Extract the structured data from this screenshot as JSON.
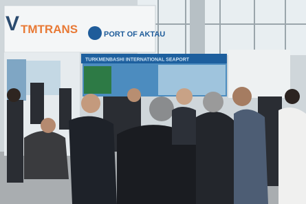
{
  "scene": {
    "signs": {
      "left_letter": "V",
      "brand": "TMTRANS",
      "port_name": "PORT OF AKTAU",
      "banner": "TURKMENBASHI INTERNATIONAL SEAPORT"
    }
  }
}
